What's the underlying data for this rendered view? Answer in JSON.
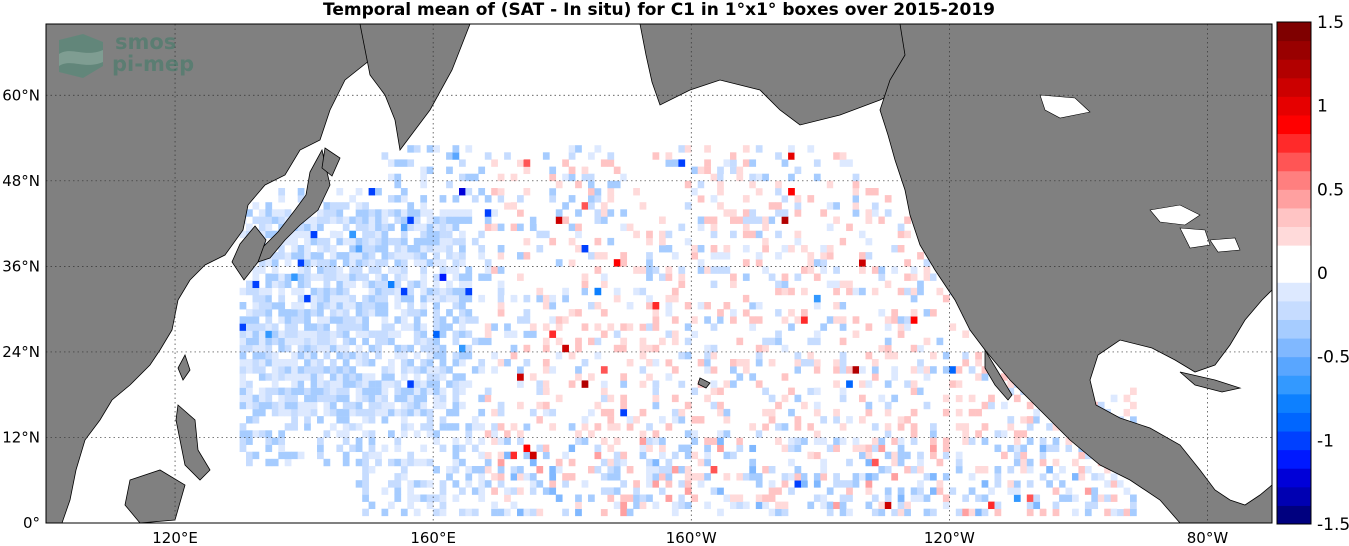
{
  "title": "Temporal mean of (SAT - In situ) for C1 in 1°x1° boxes over 2015-2019",
  "logo": {
    "line1": "smos",
    "line2": "pi-mep"
  },
  "chart_data": {
    "type": "heatmap",
    "title": "Temporal mean of (SAT - In situ) for C1 in 1°x1° boxes over 2015-2019",
    "x_ticks": [
      "120°E",
      "160°E",
      "160°W",
      "120°W",
      "80°W"
    ],
    "y_ticks": [
      "0°",
      "12°N",
      "24°N",
      "36°N",
      "48°N",
      "60°N"
    ],
    "lon_range": [
      100,
      290
    ],
    "lat_range": [
      0,
      70
    ],
    "colorbar": {
      "range": [
        -1.5,
        1.5
      ],
      "ticks": [
        "1.5",
        "1",
        "0.5",
        "0",
        "-0.5",
        "-1",
        "-1.5"
      ],
      "colors": [
        "#00007f",
        "#0000b2",
        "#0000d8",
        "#0019ff",
        "#0040ff",
        "#0066ff",
        "#0d80ff",
        "#3399ff",
        "#59a6ff",
        "#80b8ff",
        "#a6ccff",
        "#c6dcff",
        "#dde9ff",
        "#ffffff",
        "#ffffff",
        "#ffdada",
        "#ffc4c4",
        "#ffa0a0",
        "#ff7f7f",
        "#ff5555",
        "#ff2a2a",
        "#ff0000",
        "#e60000",
        "#cc0000",
        "#b20000",
        "#990000",
        "#7f0000"
      ]
    },
    "land_color": "#808080",
    "grid": true
  }
}
